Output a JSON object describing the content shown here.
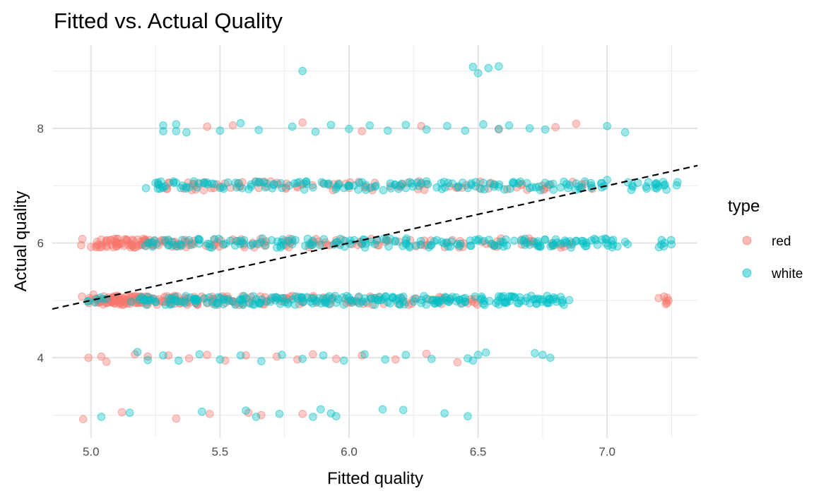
{
  "chart_data": {
    "type": "scatter",
    "title": "Fitted vs. Actual Quality",
    "xlabel": "Fitted quality",
    "ylabel": "Actual quality",
    "xlim": [
      4.85,
      7.35
    ],
    "ylim": [
      2.6,
      9.45
    ],
    "x_ticks": [
      5.0,
      5.5,
      6.0,
      6.5,
      7.0
    ],
    "x_tick_labels": [
      "5.0",
      "5.5",
      "6.0",
      "6.5",
      "7.0"
    ],
    "y_ticks": [
      4,
      6,
      8
    ],
    "y_tick_labels": [
      "4",
      "6",
      "8"
    ],
    "grid": true,
    "legend": {
      "title": "type",
      "position": "right",
      "entries": [
        {
          "label": "red",
          "color": "#F8766D"
        },
        {
          "label": "white",
          "color": "#00BFC4"
        }
      ]
    },
    "reference_line": {
      "kind": "identity",
      "style": "dashed",
      "color": "#000000"
    },
    "series": [
      {
        "name": "red",
        "color": "#F8766D",
        "points": [
          [
            4.97,
            2.93
          ],
          [
            5.12,
            3.05
          ],
          [
            5.33,
            2.94
          ],
          [
            5.46,
            3.02
          ],
          [
            5.61,
            3.04
          ],
          [
            5.66,
            3.0
          ],
          [
            5.82,
            3.02
          ],
          [
            4.99,
            4.0
          ],
          [
            5.04,
            4.02
          ],
          [
            5.06,
            3.93
          ],
          [
            5.17,
            4.06
          ],
          [
            5.22,
            4.02
          ],
          [
            5.3,
            4.04
          ],
          [
            5.38,
            3.99
          ],
          [
            5.45,
            4.05
          ],
          [
            5.52,
            3.95
          ],
          [
            5.6,
            4.04
          ],
          [
            5.72,
            4.02
          ],
          [
            5.8,
            3.97
          ],
          [
            5.86,
            4.06
          ],
          [
            5.95,
            3.98
          ],
          [
            6.05,
            4.04
          ],
          [
            6.18,
            3.97
          ],
          [
            6.3,
            4.07
          ],
          [
            6.42,
            3.92
          ],
          [
            5.01,
            5.1
          ],
          [
            5.03,
            4.96
          ],
          [
            5.05,
            5.07
          ],
          [
            5.07,
            5.02
          ],
          [
            5.09,
            4.95
          ],
          [
            5.1,
            5.08
          ],
          [
            5.12,
            5.04
          ],
          [
            5.14,
            4.94
          ],
          [
            5.16,
            5.06
          ],
          [
            5.18,
            5.01
          ],
          [
            5.2,
            4.96
          ],
          [
            5.22,
            5.07
          ],
          [
            5.25,
            5.02
          ],
          [
            5.28,
            4.97
          ],
          [
            5.31,
            5.05
          ],
          [
            5.35,
            4.98
          ],
          [
            5.4,
            5.06
          ],
          [
            5.45,
            4.95
          ],
          [
            5.5,
            5.03
          ],
          [
            5.56,
            4.97
          ],
          [
            5.62,
            5.06
          ],
          [
            5.68,
            4.99
          ],
          [
            5.75,
            5.04
          ],
          [
            5.82,
            4.96
          ],
          [
            5.9,
            5.05
          ],
          [
            6.0,
            4.98
          ],
          [
            6.1,
            5.04
          ],
          [
            6.22,
            4.97
          ],
          [
            6.35,
            5.06
          ],
          [
            6.46,
            4.95
          ],
          [
            7.2,
            5.04
          ],
          [
            5.0,
            5.93
          ],
          [
            5.06,
            6.05
          ],
          [
            5.08,
            5.97
          ],
          [
            5.1,
            6.07
          ],
          [
            5.12,
            5.99
          ],
          [
            5.14,
            6.04
          ],
          [
            5.16,
            5.95
          ],
          [
            5.18,
            6.06
          ],
          [
            5.2,
            6.0
          ],
          [
            5.24,
            5.96
          ],
          [
            5.28,
            6.05
          ],
          [
            5.34,
            5.98
          ],
          [
            5.4,
            6.04
          ],
          [
            5.48,
            5.97
          ],
          [
            5.55,
            6.06
          ],
          [
            5.65,
            5.98
          ],
          [
            5.75,
            6.03
          ],
          [
            5.85,
            5.96
          ],
          [
            5.95,
            6.05
          ],
          [
            6.05,
            5.98
          ],
          [
            6.15,
            6.04
          ],
          [
            6.28,
            5.97
          ],
          [
            6.4,
            6.05
          ],
          [
            6.55,
            5.98
          ],
          [
            6.7,
            6.03
          ],
          [
            6.82,
            5.97
          ],
          [
            5.3,
            7.05
          ],
          [
            5.36,
            6.95
          ],
          [
            5.44,
            7.06
          ],
          [
            5.5,
            6.98
          ],
          [
            5.57,
            7.04
          ],
          [
            5.65,
            6.96
          ],
          [
            5.72,
            7.05
          ],
          [
            5.8,
            6.97
          ],
          [
            5.9,
            7.04
          ],
          [
            6.0,
            6.96
          ],
          [
            6.1,
            7.05
          ],
          [
            6.2,
            6.98
          ],
          [
            6.3,
            7.03
          ],
          [
            6.42,
            6.96
          ],
          [
            6.55,
            7.05
          ],
          [
            6.65,
            6.97
          ],
          [
            6.78,
            7.02
          ],
          [
            6.9,
            6.96
          ],
          [
            5.45,
            8.03
          ],
          [
            5.55,
            8.05
          ],
          [
            5.82,
            8.1
          ],
          [
            6.05,
            7.95
          ],
          [
            6.28,
            8.04
          ],
          [
            6.58,
            7.98
          ],
          [
            6.8,
            8.02
          ],
          [
            6.88,
            8.08
          ]
        ]
      },
      {
        "name": "white",
        "color": "#00BFC4",
        "points": [
          [
            5.04,
            2.97
          ],
          [
            5.15,
            3.04
          ],
          [
            5.43,
            3.06
          ],
          [
            5.6,
            3.08
          ],
          [
            5.64,
            2.97
          ],
          [
            5.73,
            3.02
          ],
          [
            5.86,
            2.97
          ],
          [
            5.89,
            3.1
          ],
          [
            5.93,
            3.03
          ],
          [
            5.95,
            2.98
          ],
          [
            6.13,
            3.1
          ],
          [
            6.21,
            3.09
          ],
          [
            6.37,
            3.03
          ],
          [
            6.46,
            2.98
          ],
          [
            5.18,
            4.1
          ],
          [
            5.22,
            3.96
          ],
          [
            5.28,
            4.04
          ],
          [
            5.34,
            3.95
          ],
          [
            5.42,
            4.06
          ],
          [
            5.5,
            3.97
          ],
          [
            5.58,
            4.04
          ],
          [
            5.66,
            3.94
          ],
          [
            5.74,
            4.05
          ],
          [
            5.82,
            3.98
          ],
          [
            5.9,
            4.04
          ],
          [
            5.98,
            3.95
          ],
          [
            6.06,
            4.06
          ],
          [
            6.14,
            3.97
          ],
          [
            6.22,
            4.05
          ],
          [
            6.32,
            3.98
          ],
          [
            6.46,
            3.99
          ],
          [
            6.48,
            3.95
          ],
          [
            6.5,
            4.05
          ],
          [
            6.53,
            4.09
          ],
          [
            6.72,
            4.08
          ],
          [
            6.75,
            4.05
          ],
          [
            6.78,
            4.0
          ],
          [
            5.02,
            5.02
          ],
          [
            5.2,
            5.05
          ],
          [
            5.25,
            4.97
          ],
          [
            5.3,
            5.04
          ],
          [
            5.35,
            4.98
          ],
          [
            5.4,
            5.03
          ],
          [
            5.45,
            4.96
          ],
          [
            5.5,
            5.05
          ],
          [
            5.55,
            4.98
          ],
          [
            5.6,
            5.04
          ],
          [
            5.65,
            4.96
          ],
          [
            5.7,
            5.05
          ],
          [
            5.75,
            4.97
          ],
          [
            5.8,
            5.04
          ],
          [
            5.85,
            4.98
          ],
          [
            5.9,
            5.03
          ],
          [
            5.95,
            4.96
          ],
          [
            6.0,
            5.05
          ],
          [
            6.05,
            4.98
          ],
          [
            6.1,
            5.04
          ],
          [
            6.15,
            4.97
          ],
          [
            6.2,
            5.05
          ],
          [
            6.25,
            4.98
          ],
          [
            6.3,
            5.03
          ],
          [
            6.35,
            4.96
          ],
          [
            6.4,
            5.06
          ],
          [
            6.45,
            4.98
          ],
          [
            6.52,
            4.94
          ],
          [
            6.58,
            5.07
          ],
          [
            6.61,
            4.98
          ],
          [
            6.7,
            4.95
          ],
          [
            6.74,
            5.02
          ],
          [
            6.77,
            4.96
          ],
          [
            6.82,
            5.06
          ],
          [
            6.63,
            5.07
          ],
          [
            5.22,
            6.0
          ],
          [
            5.3,
            5.96
          ],
          [
            5.38,
            6.05
          ],
          [
            5.46,
            5.98
          ],
          [
            5.54,
            6.04
          ],
          [
            5.62,
            5.96
          ],
          [
            5.7,
            6.05
          ],
          [
            5.78,
            5.98
          ],
          [
            5.86,
            6.04
          ],
          [
            5.94,
            5.97
          ],
          [
            6.02,
            6.05
          ],
          [
            6.1,
            5.98
          ],
          [
            6.18,
            6.04
          ],
          [
            6.26,
            5.96
          ],
          [
            6.34,
            6.05
          ],
          [
            6.42,
            5.98
          ],
          [
            6.5,
            6.04
          ],
          [
            6.58,
            5.96
          ],
          [
            6.64,
            6.04
          ],
          [
            6.7,
            5.97
          ],
          [
            6.76,
            6.06
          ],
          [
            6.82,
            5.99
          ],
          [
            6.88,
            6.04
          ],
          [
            6.92,
            5.95
          ],
          [
            6.98,
            6.06
          ],
          [
            7.04,
            5.94
          ],
          [
            7.22,
            5.94
          ],
          [
            5.25,
            7.05
          ],
          [
            5.28,
            6.96
          ],
          [
            5.32,
            7.05
          ],
          [
            5.38,
            6.97
          ],
          [
            5.44,
            7.04
          ],
          [
            5.5,
            6.96
          ],
          [
            5.56,
            7.05
          ],
          [
            5.62,
            6.98
          ],
          [
            5.68,
            7.04
          ],
          [
            5.74,
            6.96
          ],
          [
            5.8,
            7.05
          ],
          [
            5.86,
            6.97
          ],
          [
            5.92,
            7.04
          ],
          [
            5.98,
            6.96
          ],
          [
            6.04,
            7.05
          ],
          [
            6.1,
            6.98
          ],
          [
            6.16,
            7.04
          ],
          [
            6.22,
            6.96
          ],
          [
            6.28,
            7.05
          ],
          [
            6.34,
            6.97
          ],
          [
            6.4,
            7.04
          ],
          [
            6.46,
            6.96
          ],
          [
            6.52,
            7.05
          ],
          [
            6.58,
            6.98
          ],
          [
            6.64,
            7.04
          ],
          [
            6.7,
            6.96
          ],
          [
            6.76,
            7.05
          ],
          [
            6.82,
            6.97
          ],
          [
            6.88,
            7.04
          ],
          [
            6.94,
            6.96
          ],
          [
            7.0,
            7.1
          ],
          [
            7.1,
            6.98
          ],
          [
            7.16,
            7.06
          ],
          [
            7.19,
            7.03
          ],
          [
            7.23,
            6.93
          ],
          [
            5.28,
            8.05
          ],
          [
            5.28,
            7.95
          ],
          [
            5.33,
            8.07
          ],
          [
            5.33,
            7.95
          ],
          [
            5.37,
            7.93
          ],
          [
            5.5,
            7.96
          ],
          [
            5.58,
            8.09
          ],
          [
            5.65,
            7.97
          ],
          [
            5.78,
            8.03
          ],
          [
            5.87,
            7.94
          ],
          [
            5.93,
            8.06
          ],
          [
            6.0,
            7.99
          ],
          [
            6.08,
            8.05
          ],
          [
            6.15,
            7.96
          ],
          [
            6.22,
            8.06
          ],
          [
            6.3,
            7.98
          ],
          [
            6.38,
            8.04
          ],
          [
            6.45,
            7.96
          ],
          [
            6.52,
            8.07
          ],
          [
            6.58,
            7.99
          ],
          [
            6.62,
            8.05
          ],
          [
            6.7,
            8.0
          ],
          [
            6.76,
            7.98
          ],
          [
            7.0,
            8.04
          ],
          [
            7.07,
            7.93
          ],
          [
            5.82,
            9.0
          ],
          [
            6.48,
            9.07
          ],
          [
            6.5,
            8.96
          ],
          [
            6.58,
            9.08
          ],
          [
            6.54,
            9.05
          ]
        ]
      }
    ]
  }
}
